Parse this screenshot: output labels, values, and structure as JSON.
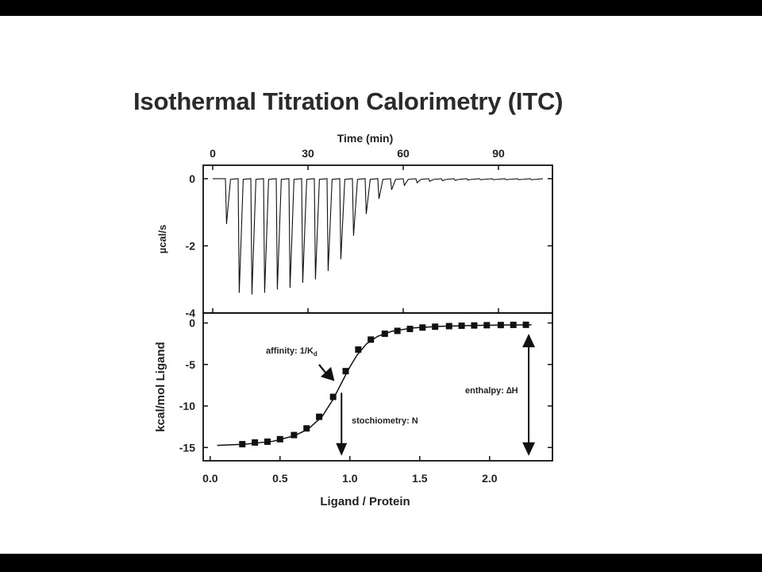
{
  "figure": {
    "title": "Isothermal Titration Calorimetry (ITC)"
  },
  "chart_data": [
    {
      "type": "line",
      "panel": "raw-heat",
      "xlabel": "Time (min)",
      "ylabel": "µcal/s",
      "x_axis_position": "top",
      "xlim": [
        -3,
        107
      ],
      "ylim": [
        -4,
        0.4
      ],
      "xticks": [
        0,
        30,
        60,
        90
      ],
      "yticks": [
        0,
        -2,
        -4
      ],
      "baseline": 0,
      "injection_times": [
        4,
        8,
        12,
        16,
        20,
        24,
        28,
        32,
        36,
        40,
        44,
        48,
        52,
        56,
        60,
        64,
        68,
        72,
        76,
        80,
        84,
        88,
        92,
        96,
        100
      ],
      "peak_minima": [
        -1.35,
        -3.4,
        -3.45,
        -3.4,
        -3.3,
        -3.25,
        -3.1,
        -3.0,
        -2.75,
        -2.4,
        -1.7,
        -1.05,
        -0.6,
        -0.33,
        -0.2,
        -0.12,
        -0.08,
        -0.06,
        -0.05,
        -0.04,
        -0.03,
        -0.03,
        -0.03,
        -0.03,
        -0.03
      ],
      "series_color": "#111111"
    },
    {
      "type": "scatter",
      "panel": "binding-isotherm",
      "xlabel": "Ligand / Protein",
      "ylabel": "kcal/mol Ligand",
      "xlim": [
        -0.05,
        2.45
      ],
      "ylim": [
        -16.6,
        1.2
      ],
      "xticks": [
        0.0,
        0.5,
        1.0,
        1.5,
        2.0
      ],
      "xtick_labels": [
        "0.0",
        "0.5",
        "1.0",
        "1.5",
        "2.0"
      ],
      "yticks": [
        0,
        -5,
        -10,
        -15
      ],
      "points": {
        "x": [
          0.23,
          0.32,
          0.41,
          0.5,
          0.6,
          0.69,
          0.78,
          0.88,
          0.97,
          1.06,
          1.15,
          1.25,
          1.34,
          1.43,
          1.52,
          1.61,
          1.71,
          1.8,
          1.89,
          1.98,
          2.08,
          2.17,
          2.26
        ],
        "y": [
          -14.6,
          -14.4,
          -14.3,
          -14.0,
          -13.5,
          -12.7,
          -11.3,
          -8.9,
          -5.8,
          -3.2,
          -2.0,
          -1.3,
          -0.95,
          -0.72,
          -0.55,
          -0.45,
          -0.38,
          -0.33,
          -0.3,
          -0.27,
          -0.25,
          -0.23,
          -0.22
        ]
      },
      "fit": {
        "x": [
          0.05,
          0.25,
          0.45,
          0.6,
          0.7,
          0.8,
          0.88,
          0.95,
          1.0,
          1.05,
          1.12,
          1.2,
          1.3,
          1.45,
          1.65,
          1.9,
          2.1,
          2.3
        ],
        "y": [
          -14.75,
          -14.6,
          -14.25,
          -13.6,
          -12.8,
          -11.3,
          -9.2,
          -6.9,
          -5.3,
          -3.9,
          -2.5,
          -1.6,
          -1.0,
          -0.6,
          -0.4,
          -0.3,
          -0.25,
          -0.22
        ]
      },
      "annotations": [
        {
          "label": "affinity: 1/K",
          "subscript": "d",
          "target": [
            0.89,
            -7.0
          ]
        },
        {
          "label": "stochiometry: N",
          "arrow_x": 0.94,
          "arrow_from": -8.4,
          "arrow_to": -16.0
        },
        {
          "label": "enthalpy: ∆H",
          "arrow_x": 2.28,
          "arrow_from": -1.3,
          "arrow_to": -16.0
        }
      ],
      "series_color": "#111111"
    }
  ]
}
